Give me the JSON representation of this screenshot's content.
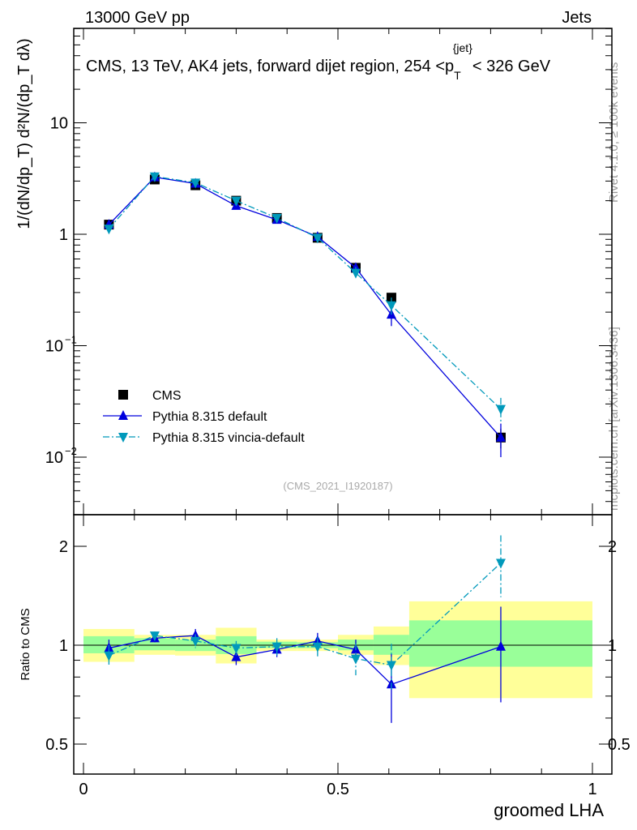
{
  "header": {
    "left": "13000 GeV pp",
    "right": "Jets"
  },
  "side_labels": {
    "rivet": "Rivet 4.1.0, ≥ 100k events",
    "mcplots": "mcplots.cern.ch [arXiv:1306.3436]"
  },
  "analysis_id": "(CMS_2021_I1920187)",
  "chart_data": [
    {
      "type": "scatter",
      "title": "CMS, 13 TeV, AK4 jets, forward dijet region, 254 <p_T^{jet}< 326 GeV",
      "title_main": "CMS, 13 TeV, AK4 jets, forward dijet region, 254 <p",
      "title_sup": "{jet}",
      "title_sub": "T",
      "title_end": "< 326 GeV",
      "ylabel": "1/(dN/dp_T) d²N/(dp_T dλ)",
      "yscale": "log",
      "ylim": [
        0.003,
        60
      ],
      "yticks": [
        {
          "v": 0.01,
          "base": "10",
          "exp": "−2"
        },
        {
          "v": 0.1,
          "base": "10",
          "exp": "−1"
        },
        {
          "v": 1,
          "base": "1",
          "exp": ""
        },
        {
          "v": 10,
          "base": "10",
          "exp": ""
        }
      ],
      "x": [
        0.05,
        0.14,
        0.22,
        0.3,
        0.38,
        0.46,
        0.535,
        0.605,
        0.82
      ],
      "series": [
        {
          "name": "CMS",
          "color": "#000000",
          "marker": "square",
          "values": [
            1.22,
            3.1,
            2.75,
            2.0,
            1.4,
            0.93,
            0.5,
            0.27,
            0.015
          ],
          "err": [
            0.05,
            0.1,
            0.1,
            0.08,
            0.05,
            0.05,
            0.03,
            0.02,
            0.003
          ]
        },
        {
          "name": "Pythia 8.315 default",
          "color": "#0000dd",
          "marker": "triangle-up",
          "values": [
            1.22,
            3.25,
            2.85,
            1.8,
            1.35,
            0.95,
            0.5,
            0.19,
            0.015
          ],
          "err": [
            0.05,
            0.08,
            0.1,
            0.07,
            0.06,
            0.06,
            0.04,
            0.04,
            0.005
          ]
        },
        {
          "name": "Pythia 8.315 vincia-default",
          "color": "#0099bb",
          "marker": "triangle-down",
          "values": [
            1.12,
            3.3,
            2.9,
            2.0,
            1.4,
            0.93,
            0.45,
            0.23,
            0.027
          ],
          "err": [
            0.06,
            0.08,
            0.1,
            0.08,
            0.07,
            0.07,
            0.06,
            0.04,
            0.007
          ]
        }
      ],
      "legend": "bottom-left"
    },
    {
      "type": "scatter",
      "ylabel": "Ratio to CMS",
      "xlabel": "groomed LHA",
      "yscale": "log",
      "ylim": [
        0.4,
        2.4
      ],
      "xlim": [
        -0.02,
        1.04
      ],
      "yticks": [
        0.5,
        1,
        2
      ],
      "ytick_labels": [
        "0.5",
        "1",
        "2"
      ],
      "xticks": [
        0,
        0.5,
        1
      ],
      "xtick_labels": [
        "0",
        "0.5",
        "1"
      ],
      "bands": {
        "edges": [
          0,
          0.1,
          0.18,
          0.26,
          0.34,
          0.42,
          0.5,
          0.57,
          0.64,
          1.0
        ],
        "yellow_lo": [
          0.89,
          0.935,
          0.93,
          0.88,
          0.96,
          0.96,
          0.935,
          0.87,
          0.69
        ],
        "yellow_hi": [
          1.12,
          1.075,
          1.075,
          1.13,
          1.04,
          1.04,
          1.075,
          1.14,
          1.36
        ],
        "green_lo": [
          0.945,
          0.965,
          0.96,
          0.94,
          0.98,
          0.98,
          0.965,
          0.935,
          0.86
        ],
        "green_hi": [
          1.065,
          1.05,
          1.04,
          1.065,
          1.025,
          1.02,
          1.04,
          1.075,
          1.19
        ],
        "yellow_color": "#ffff99",
        "green_color": "#99ff99"
      },
      "x": [
        0.05,
        0.14,
        0.22,
        0.3,
        0.38,
        0.46,
        0.535,
        0.605,
        0.82
      ],
      "series": [
        {
          "name": "Pythia 8.315 default",
          "color": "#0000dd",
          "marker": "triangle-up",
          "values": [
            0.98,
            1.05,
            1.07,
            0.92,
            0.97,
            1.03,
            0.97,
            0.76,
            0.99
          ],
          "err": [
            0.06,
            0.03,
            0.05,
            0.05,
            0.05,
            0.06,
            0.07,
            0.18,
            0.32
          ]
        },
        {
          "name": "Pythia 8.315 vincia-default",
          "color": "#0099bb",
          "marker": "triangle-down",
          "values": [
            0.93,
            1.07,
            1.03,
            0.98,
            0.99,
            0.99,
            0.91,
            0.87,
            1.78
          ],
          "err": [
            0.07,
            0.03,
            0.05,
            0.05,
            0.06,
            0.07,
            0.1,
            0.14,
            0.38
          ]
        }
      ]
    }
  ]
}
